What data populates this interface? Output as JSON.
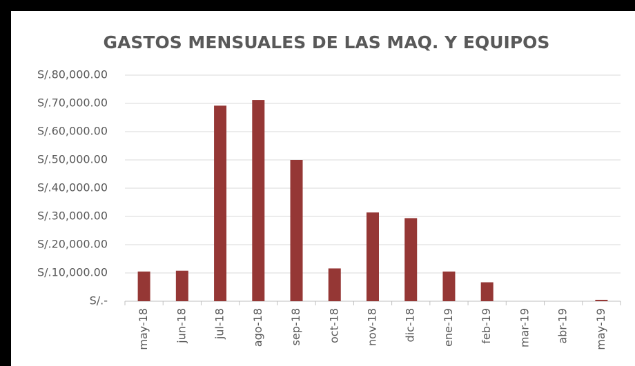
{
  "chart_data": {
    "type": "bar",
    "title": "GASTOS MENSUALES DE LAS MAQ. Y EQUIPOS",
    "categories": [
      "may-18",
      "jun-18",
      "jul-18",
      "ago-18",
      "sep-18",
      "oct-18",
      "nov-18",
      "dic-18",
      "ene-19",
      "feb-19",
      "mar-19",
      "abr-19",
      "may-19"
    ],
    "values": [
      10500,
      10800,
      69200,
      71200,
      50000,
      11600,
      31400,
      29400,
      10500,
      6700,
      0,
      0,
      500
    ],
    "color": "#953735",
    "ylim": [
      0,
      80000
    ],
    "yticks": [
      {
        "value": 0,
        "label": "S/.-"
      },
      {
        "value": 10000,
        "label": "S/.10,000.00"
      },
      {
        "value": 20000,
        "label": "S/.20,000.00"
      },
      {
        "value": 30000,
        "label": "S/.30,000.00"
      },
      {
        "value": 40000,
        "label": "S/.40,000.00"
      },
      {
        "value": 50000,
        "label": "S/.50,000.00"
      },
      {
        "value": 60000,
        "label": "S/.60,000.00"
      },
      {
        "value": 70000,
        "label": "S/.70,000.00"
      },
      {
        "value": 80000,
        "label": "S/.80,000.00"
      }
    ],
    "grid": true
  }
}
